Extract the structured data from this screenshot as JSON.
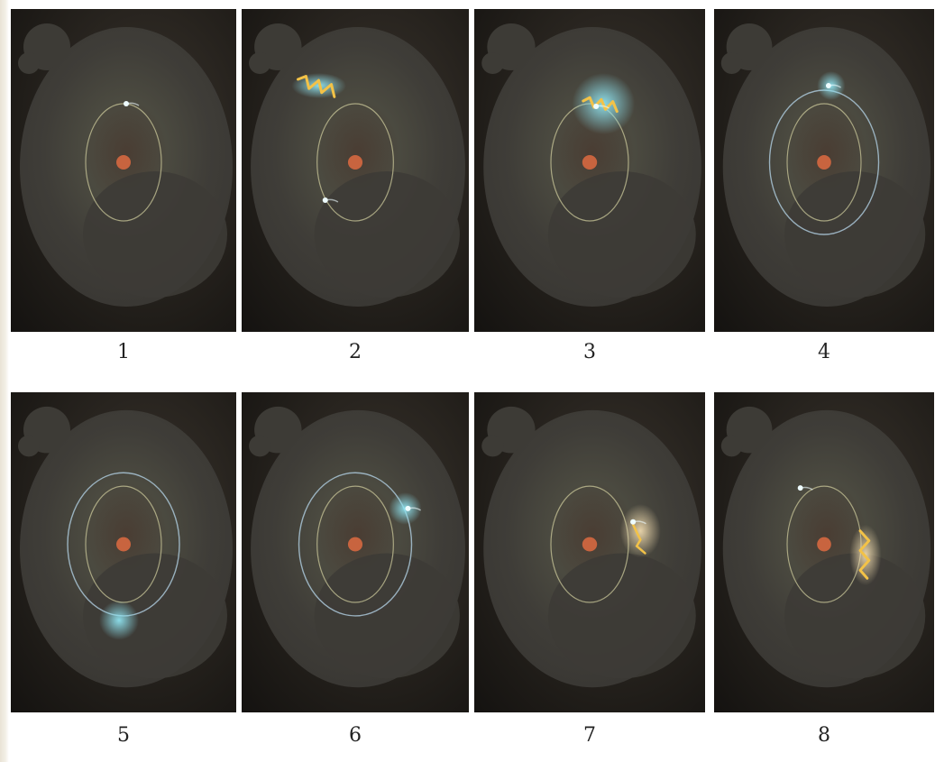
{
  "figure": {
    "panels": [
      {
        "number": "1",
        "outer_orbit": false,
        "electron": "inner-top",
        "photon": "none"
      },
      {
        "number": "2",
        "outer_orbit": false,
        "electron": "inner-bottom-right",
        "photon": "incoming-wave"
      },
      {
        "number": "3",
        "outer_orbit": false,
        "electron": "absorbing",
        "photon": "absorbed-glow"
      },
      {
        "number": "4",
        "outer_orbit": true,
        "electron": "outer-top-right",
        "photon": "small-glow"
      },
      {
        "number": "5",
        "outer_orbit": true,
        "electron": "outer-bottom",
        "photon": "glow"
      },
      {
        "number": "6",
        "outer_orbit": true,
        "electron": "outer-right",
        "photon": "glow"
      },
      {
        "number": "7",
        "outer_orbit": false,
        "electron": "inner-right",
        "photon": "emission-start"
      },
      {
        "number": "8",
        "outer_orbit": false,
        "electron": "inner-top-left",
        "photon": "emitted-wave"
      }
    ]
  },
  "colors": {
    "nucleus": "#c8643f",
    "inner_orbit": "#c9c79a",
    "outer_orbit": "#a9c6d6",
    "blue_glow": "#8fe3f0",
    "yellow_wave": "#f3c247",
    "electron": "#eefcff"
  }
}
